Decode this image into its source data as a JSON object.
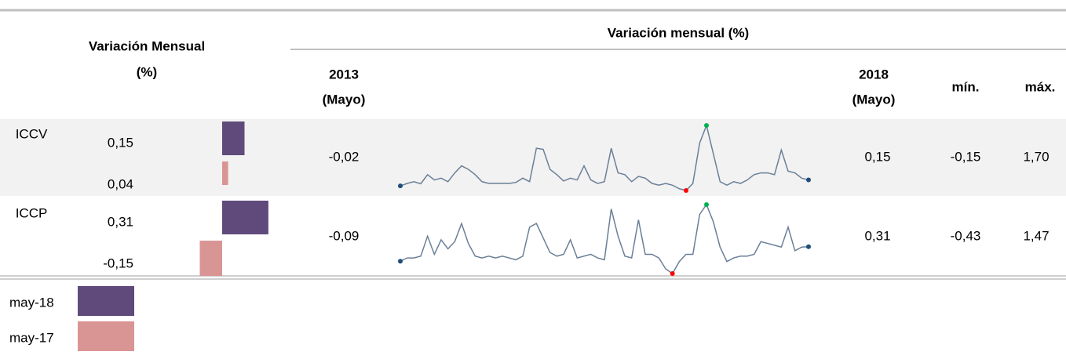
{
  "header": {
    "left_title": [
      "Variación Mensual",
      "(%)"
    ],
    "right_title": "Variación mensual (%)",
    "start": [
      "2013",
      "(Mayo)"
    ],
    "end": [
      "2018",
      "(Mayo)"
    ],
    "min": "mín.",
    "max": "máx.",
    "min_color": "#ff0000",
    "max_color": "#00b050"
  },
  "rows": [
    {
      "label": "ICCV",
      "current": {
        "value": 0.15,
        "label": "0,15"
      },
      "previous": {
        "value": 0.04,
        "label": "0,04"
      },
      "start": "-0,02",
      "end": "0,15",
      "min": "-0,15",
      "max": "1,70",
      "sparkline": [
        -0.02,
        0.05,
        0.1,
        0.04,
        0.3,
        0.15,
        0.2,
        0.1,
        0.35,
        0.55,
        0.45,
        0.3,
        0.1,
        0.05,
        0.05,
        0.05,
        0.05,
        0.08,
        0.2,
        0.1,
        1.05,
        1.02,
        0.45,
        0.3,
        0.12,
        0.2,
        0.15,
        0.55,
        0.15,
        0.05,
        0.1,
        1.05,
        0.35,
        0.3,
        0.1,
        0.25,
        0.2,
        0.05,
        0.0,
        0.05,
        0.0,
        -0.1,
        -0.15,
        0.05,
        1.2,
        1.7,
        0.9,
        0.1,
        0.0,
        0.1,
        0.05,
        0.15,
        0.3,
        0.35,
        0.35,
        0.3,
        1.0,
        0.4,
        0.35,
        0.2,
        0.15
      ]
    },
    {
      "label": "ICCP",
      "current": {
        "value": 0.31,
        "label": "0,31"
      },
      "previous": {
        "value": -0.15,
        "label": "-0,15"
      },
      "start": "-0,09",
      "end": "0,31",
      "min": "-0,43",
      "max": "1,47",
      "sparkline": [
        -0.09,
        0.0,
        0.0,
        0.05,
        0.6,
        0.1,
        0.5,
        0.25,
        0.45,
        0.95,
        0.4,
        0.05,
        0.0,
        0.05,
        0.0,
        0.05,
        0.0,
        -0.05,
        0.05,
        0.85,
        0.95,
        0.55,
        0.15,
        0.05,
        0.1,
        0.5,
        0.0,
        0.05,
        0.1,
        0.0,
        -0.05,
        1.35,
        0.6,
        0.05,
        0.0,
        1.05,
        0.1,
        0.1,
        0.0,
        -0.3,
        -0.43,
        -0.1,
        0.1,
        0.1,
        1.2,
        1.47,
        1.0,
        0.3,
        -0.1,
        0.0,
        0.05,
        0.05,
        0.1,
        0.45,
        0.4,
        0.35,
        0.3,
        0.85,
        0.2,
        0.3,
        0.31
      ]
    }
  ],
  "legend": [
    {
      "label": "may-18",
      "color": "#604a7b"
    },
    {
      "label": "may-17",
      "color": "#d99594"
    }
  ]
}
